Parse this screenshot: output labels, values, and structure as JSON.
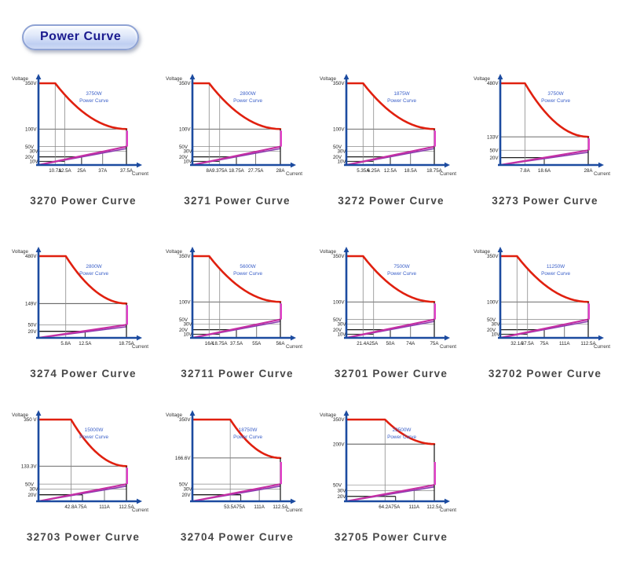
{
  "header": {
    "title": "Power Curve"
  },
  "axes": {
    "y_label": "Voltage",
    "x_label": "Current"
  },
  "colors": {
    "axis_blue": "#1c4ba0",
    "curve_red": "#e0200f",
    "magenta": "#c52fa4",
    "magenta_bright": "#e23ec8",
    "purple_dark": "#8a3bb0",
    "grid_gray": "#8a8a8a",
    "line_black": "#1a1a1a",
    "power_label_blue": "#3a5fc8",
    "tick_text": "#222222",
    "axis_label_text": "#333333",
    "title_text": "#474747",
    "pill_text": "#1b1b8f"
  },
  "rows": [
    4,
    4,
    3
  ],
  "chart_data": [
    {
      "type": "line",
      "model": "3270",
      "title": "3270 Power Curve",
      "power_label": "3750W",
      "curve_label": "Power Curve",
      "v_max": 350,
      "v_curve_end": 100,
      "i_knee": 10.7,
      "i_max": 37.5,
      "y_ticks": [
        {
          "label": "350V",
          "v": 350,
          "pos": 0
        },
        {
          "label": "100V",
          "v": 100,
          "pos": 0.56
        },
        {
          "label": "50V",
          "v": 50,
          "pos": 0.775
        },
        {
          "label": "30V",
          "v": 30,
          "pos": 0.83
        },
        {
          "label": "20V",
          "v": 20,
          "pos": 0.9
        },
        {
          "label": "10V",
          "v": 10,
          "pos": 0.955
        }
      ],
      "x_ticks": [
        {
          "label": "10.7A",
          "i": 10.7,
          "pos": 0.19
        },
        {
          "label": "12.5A",
          "i": 12.5,
          "pos": 0.3
        },
        {
          "label": "25A",
          "i": 25,
          "pos": 0.49
        },
        {
          "label": "37A",
          "i": 37,
          "pos": 0.73
        },
        {
          "label": "37.5A",
          "i": 37.5,
          "pos": 1
        }
      ]
    },
    {
      "type": "line",
      "model": "3271",
      "title": "3271 Power Curve",
      "power_label": "2800W",
      "curve_label": "Power Curve",
      "v_max": 350,
      "v_curve_end": 100,
      "i_knee": 8,
      "i_max": 28,
      "y_ticks": [
        {
          "label": "350V",
          "v": 350,
          "pos": 0
        },
        {
          "label": "100V",
          "v": 100,
          "pos": 0.56
        },
        {
          "label": "50V",
          "v": 50,
          "pos": 0.775
        },
        {
          "label": "30V",
          "v": 30,
          "pos": 0.83
        },
        {
          "label": "20V",
          "v": 20,
          "pos": 0.9
        },
        {
          "label": "10V",
          "v": 10,
          "pos": 0.955
        }
      ],
      "x_ticks": [
        {
          "label": "8A",
          "i": 8,
          "pos": 0.19
        },
        {
          "label": "9.375A",
          "i": 9.375,
          "pos": 0.31
        },
        {
          "label": "18.75A",
          "i": 18.75,
          "pos": 0.5
        },
        {
          "label": "27.75A",
          "i": 27.75,
          "pos": 0.72
        },
        {
          "label": "28A",
          "i": 28,
          "pos": 1
        }
      ]
    },
    {
      "type": "line",
      "model": "3272",
      "title": "3272 Power Curve",
      "power_label": "1875W",
      "curve_label": "Power Curve",
      "v_max": 350,
      "v_curve_end": 100,
      "i_knee": 5.35,
      "i_max": 18.75,
      "y_ticks": [
        {
          "label": "350V",
          "v": 350,
          "pos": 0
        },
        {
          "label": "100V",
          "v": 100,
          "pos": 0.56
        },
        {
          "label": "50V",
          "v": 50,
          "pos": 0.775
        },
        {
          "label": "30V",
          "v": 30,
          "pos": 0.83
        },
        {
          "label": "20V",
          "v": 20,
          "pos": 0.9
        },
        {
          "label": "10V",
          "v": 10,
          "pos": 0.955
        }
      ],
      "x_ticks": [
        {
          "label": "5.35A",
          "i": 5.35,
          "pos": 0.19
        },
        {
          "label": "6.25A",
          "i": 6.25,
          "pos": 0.31
        },
        {
          "label": "12.5A",
          "i": 12.5,
          "pos": 0.5
        },
        {
          "label": "18.5A",
          "i": 18.5,
          "pos": 0.73
        },
        {
          "label": "18.75A",
          "i": 18.75,
          "pos": 1
        }
      ]
    },
    {
      "type": "line",
      "model": "3273",
      "title": "3273 Power Curve",
      "power_label": "3750W",
      "curve_label": "Power Curve",
      "v_max": 480,
      "v_curve_end": 133,
      "i_knee": 7.8,
      "i_max": 28,
      "y_ticks": [
        {
          "label": "480V",
          "v": 480,
          "pos": 0
        },
        {
          "label": "133V",
          "v": 133,
          "pos": 0.655
        },
        {
          "label": "50V",
          "v": 50,
          "pos": 0.82
        },
        {
          "label": "20V",
          "v": 20,
          "pos": 0.91
        }
      ],
      "x_ticks": [
        {
          "label": "7.8A",
          "i": 7.8,
          "pos": 0.28
        },
        {
          "label": "18.6A",
          "i": 18.6,
          "pos": 0.5
        },
        {
          "label": "28A",
          "i": 28,
          "pos": 1
        }
      ]
    },
    {
      "type": "line",
      "model": "3274",
      "title": "3274 Power Curve",
      "power_label": "2800W",
      "curve_label": "Power Curve",
      "v_max": 480,
      "v_curve_end": 149,
      "i_knee": 5.8,
      "i_max": 18.75,
      "y_ticks": [
        {
          "label": "480V",
          "v": 480,
          "pos": 0
        },
        {
          "label": "149V",
          "v": 149,
          "pos": 0.58
        },
        {
          "label": "50V",
          "v": 50,
          "pos": 0.84
        },
        {
          "label": "20V",
          "v": 20,
          "pos": 0.92
        }
      ],
      "x_ticks": [
        {
          "label": "5.8A",
          "i": 5.8,
          "pos": 0.31
        },
        {
          "label": "12.5A",
          "i": 12.5,
          "pos": 0.53
        },
        {
          "label": "18.75A",
          "i": 18.75,
          "pos": 1
        }
      ]
    },
    {
      "type": "line",
      "model": "32711",
      "title": "32711 Power Curve",
      "power_label": "5600W",
      "curve_label": "Power Curve",
      "v_max": 350,
      "v_curve_end": 100,
      "i_knee": 16,
      "i_max": 56,
      "y_ticks": [
        {
          "label": "350V",
          "v": 350,
          "pos": 0
        },
        {
          "label": "100V",
          "v": 100,
          "pos": 0.56
        },
        {
          "label": "50V",
          "v": 50,
          "pos": 0.775
        },
        {
          "label": "30V",
          "v": 30,
          "pos": 0.83
        },
        {
          "label": "20V",
          "v": 20,
          "pos": 0.9
        },
        {
          "label": "10V",
          "v": 10,
          "pos": 0.955
        }
      ],
      "x_ticks": [
        {
          "label": "16A",
          "i": 16,
          "pos": 0.19
        },
        {
          "label": "18.75A",
          "i": 18.75,
          "pos": 0.31
        },
        {
          "label": "37.5A",
          "i": 37.5,
          "pos": 0.5
        },
        {
          "label": "55A",
          "i": 55,
          "pos": 0.73
        },
        {
          "label": "56A",
          "i": 56,
          "pos": 1
        }
      ]
    },
    {
      "type": "line",
      "model": "32701",
      "title": "32701 Power Curve",
      "power_label": "7500W",
      "curve_label": "Power Curve",
      "v_max": 350,
      "v_curve_end": 100,
      "i_knee": 21.4,
      "i_max": 75,
      "y_ticks": [
        {
          "label": "350V",
          "v": 350,
          "pos": 0
        },
        {
          "label": "100V",
          "v": 100,
          "pos": 0.56
        },
        {
          "label": "50V",
          "v": 50,
          "pos": 0.775
        },
        {
          "label": "30V",
          "v": 30,
          "pos": 0.83
        },
        {
          "label": "20V",
          "v": 20,
          "pos": 0.9
        },
        {
          "label": "10V",
          "v": 10,
          "pos": 0.955
        }
      ],
      "x_ticks": [
        {
          "label": "21.4A",
          "i": 21.4,
          "pos": 0.19
        },
        {
          "label": "25A",
          "i": 25,
          "pos": 0.31
        },
        {
          "label": "50A",
          "i": 50,
          "pos": 0.5
        },
        {
          "label": "74A",
          "i": 74,
          "pos": 0.73
        },
        {
          "label": "75A",
          "i": 75,
          "pos": 1
        }
      ]
    },
    {
      "type": "line",
      "model": "32702",
      "title": "32702 Power Curve",
      "power_label": "11250W",
      "curve_label": "Power Curve",
      "v_max": 350,
      "v_curve_end": 100,
      "i_knee": 32.1,
      "i_max": 112.5,
      "y_ticks": [
        {
          "label": "350V",
          "v": 350,
          "pos": 0
        },
        {
          "label": "100V",
          "v": 100,
          "pos": 0.56
        },
        {
          "label": "50V",
          "v": 50,
          "pos": 0.775
        },
        {
          "label": "30V",
          "v": 30,
          "pos": 0.83
        },
        {
          "label": "20V",
          "v": 20,
          "pos": 0.9
        },
        {
          "label": "10V",
          "v": 10,
          "pos": 0.955
        }
      ],
      "x_ticks": [
        {
          "label": "32.1A",
          "i": 32.1,
          "pos": 0.19
        },
        {
          "label": "37.5A",
          "i": 37.5,
          "pos": 0.31
        },
        {
          "label": "75A",
          "i": 75,
          "pos": 0.5
        },
        {
          "label": "111A",
          "i": 111,
          "pos": 0.73
        },
        {
          "label": "112.5A",
          "i": 112.5,
          "pos": 1
        }
      ]
    },
    {
      "type": "line",
      "model": "32703",
      "title": "32703 Power Curve",
      "power_label": "15000W",
      "curve_label": "Power Curve",
      "v_max": 350,
      "v_curve_end": 133.3,
      "i_knee": 42.8,
      "i_max": 112.5,
      "y_ticks": [
        {
          "label": "350 V",
          "v": 350,
          "pos": 0
        },
        {
          "label": "133.3V",
          "v": 133.3,
          "pos": 0.57
        },
        {
          "label": "50V",
          "v": 50,
          "pos": 0.79
        },
        {
          "label": "30V",
          "v": 30,
          "pos": 0.85
        },
        {
          "label": "20V",
          "v": 20,
          "pos": 0.92
        }
      ],
      "x_ticks": [
        {
          "label": "42.8A",
          "i": 42.8,
          "pos": 0.37
        },
        {
          "label": "75A",
          "i": 75,
          "pos": 0.5
        },
        {
          "label": "111A",
          "i": 111,
          "pos": 0.75
        },
        {
          "label": "112.5A",
          "i": 112.5,
          "pos": 1
        }
      ]
    },
    {
      "type": "line",
      "model": "32704",
      "title": "32704 Power Curve",
      "power_label": "18750W",
      "curve_label": "Power Curve",
      "v_max": 350,
      "v_curve_end": 166.6,
      "i_knee": 53.5,
      "i_max": 112.5,
      "y_ticks": [
        {
          "label": "350V",
          "v": 350,
          "pos": 0
        },
        {
          "label": "166.6V",
          "v": 166.6,
          "pos": 0.47
        },
        {
          "label": "50V",
          "v": 50,
          "pos": 0.79
        },
        {
          "label": "30V",
          "v": 30,
          "pos": 0.85
        },
        {
          "label": "20V",
          "v": 20,
          "pos": 0.92
        }
      ],
      "x_ticks": [
        {
          "label": "53.5A",
          "i": 53.5,
          "pos": 0.43
        },
        {
          "label": "75A",
          "i": 75,
          "pos": 0.55
        },
        {
          "label": "111A",
          "i": 111,
          "pos": 0.76
        },
        {
          "label": "112.5A",
          "i": 112.5,
          "pos": 1
        }
      ]
    },
    {
      "type": "line",
      "model": "32705",
      "title": "32705 Power Curve",
      "power_label": "22500W",
      "curve_label": "Power Curve",
      "v_max": 350,
      "v_curve_end": 200,
      "i_knee": 64.2,
      "i_max": 112.5,
      "y_ticks": [
        {
          "label": "350V",
          "v": 350,
          "pos": 0
        },
        {
          "label": "200V",
          "v": 200,
          "pos": 0.3
        },
        {
          "label": "50V",
          "v": 50,
          "pos": 0.8
        },
        {
          "label": "30V",
          "v": 30,
          "pos": 0.87
        },
        {
          "label": "20V",
          "v": 20,
          "pos": 0.94
        }
      ],
      "x_ticks": [
        {
          "label": "64.2A",
          "i": 64.2,
          "pos": 0.44
        },
        {
          "label": "75A",
          "i": 75,
          "pos": 0.56
        },
        {
          "label": "111A",
          "i": 111,
          "pos": 0.77
        },
        {
          "label": "112.5A",
          "i": 112.5,
          "pos": 1
        }
      ]
    }
  ]
}
